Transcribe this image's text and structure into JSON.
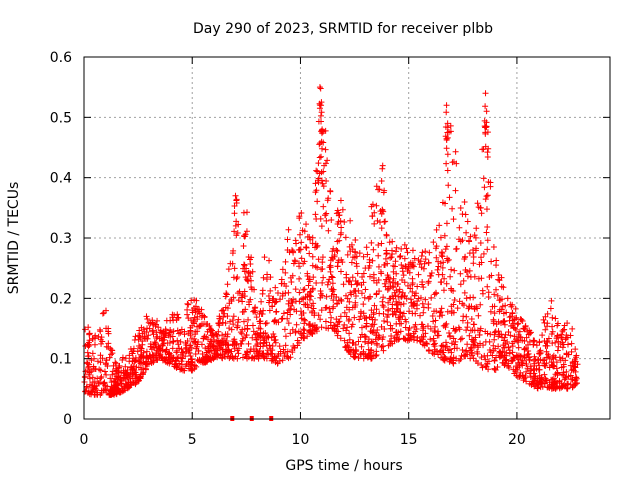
{
  "chart_data": {
    "type": "scatter",
    "title": "Day 290 of 2023, SRMTID for receiver plbb",
    "xlabel": "GPS time / hours",
    "ylabel": "SRMTID / TECUs",
    "xlim": [
      0,
      24.3
    ],
    "ylim": [
      0,
      0.6
    ],
    "x_ticks": [
      0,
      5,
      10,
      15,
      20
    ],
    "x_tick_labels": [
      "0",
      "5",
      "10",
      "15",
      "20"
    ],
    "y_ticks": [
      0,
      0.1,
      0.2,
      0.3,
      0.4,
      0.5,
      0.6
    ],
    "y_tick_labels": [
      "0",
      "0.1",
      "0.2",
      "0.3",
      "0.4",
      "0.5",
      "0.6"
    ],
    "grid": true,
    "marker": "+",
    "color": "#ff0000",
    "series": [
      {
        "name": "SRMTID",
        "envelope": {
          "x": [
            0,
            0.5,
            1.0,
            1.5,
            2.0,
            2.5,
            3.0,
            3.5,
            4.0,
            4.5,
            5.0,
            5.5,
            6.0,
            6.5,
            7.0,
            7.5,
            8.0,
            8.5,
            9.0,
            9.5,
            10.0,
            10.5,
            11.0,
            11.5,
            12.0,
            12.5,
            13.0,
            13.5,
            14.0,
            14.5,
            15.0,
            15.5,
            16.0,
            16.5,
            17.0,
            17.5,
            18.0,
            18.5,
            19.0,
            19.5,
            20.0,
            20.5,
            21.0,
            21.5,
            22.0,
            22.5,
            22.8
          ],
          "low": [
            0.04,
            0.04,
            0.04,
            0.04,
            0.05,
            0.06,
            0.09,
            0.1,
            0.09,
            0.08,
            0.08,
            0.09,
            0.1,
            0.1,
            0.1,
            0.1,
            0.1,
            0.1,
            0.09,
            0.1,
            0.13,
            0.14,
            0.15,
            0.15,
            0.12,
            0.1,
            0.1,
            0.1,
            0.12,
            0.13,
            0.13,
            0.13,
            0.11,
            0.1,
            0.09,
            0.1,
            0.1,
            0.08,
            0.08,
            0.09,
            0.07,
            0.06,
            0.05,
            0.05,
            0.05,
            0.05,
            0.06
          ],
          "high": [
            0.16,
            0.14,
            0.19,
            0.09,
            0.11,
            0.15,
            0.18,
            0.16,
            0.18,
            0.17,
            0.21,
            0.18,
            0.15,
            0.19,
            0.37,
            0.36,
            0.17,
            0.32,
            0.2,
            0.33,
            0.35,
            0.3,
            0.55,
            0.33,
            0.38,
            0.3,
            0.27,
            0.42,
            0.32,
            0.28,
            0.3,
            0.27,
            0.3,
            0.33,
            0.52,
            0.38,
            0.28,
            0.54,
            0.3,
            0.21,
            0.18,
            0.15,
            0.13,
            0.21,
            0.15,
            0.17,
            0.11
          ]
        },
        "spikes": [
          {
            "x": 10.9,
            "y": 0.55
          },
          {
            "x": 10.95,
            "y": 0.52
          },
          {
            "x": 11.0,
            "y": 0.48
          },
          {
            "x": 16.75,
            "y": 0.52
          },
          {
            "x": 16.8,
            "y": 0.49
          },
          {
            "x": 18.55,
            "y": 0.54
          },
          {
            "x": 18.6,
            "y": 0.51
          },
          {
            "x": 13.8,
            "y": 0.42
          },
          {
            "x": 7.0,
            "y": 0.37
          }
        ],
        "zero_points": [
          {
            "x": 6.85,
            "y": 0.0
          },
          {
            "x": 7.75,
            "y": 0.0
          },
          {
            "x": 8.65,
            "y": 0.0
          }
        ]
      }
    ]
  }
}
